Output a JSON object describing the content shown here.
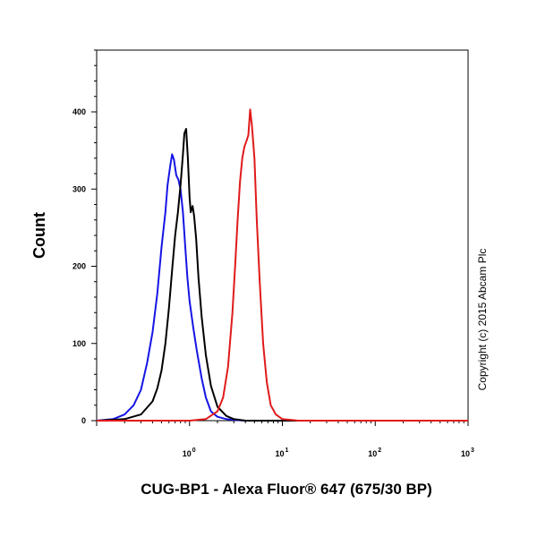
{
  "chart_data": {
    "type": "line",
    "subtype": "histogram",
    "title": "",
    "xlabel": "CUG-BP1 - Alexa Fluor® 647 (675/30 BP)",
    "ylabel": "Count",
    "x_scale": "log",
    "xlim": [
      0.1,
      1000
    ],
    "ylim": [
      0,
      480
    ],
    "x_ticks": [
      {
        "base": "10",
        "exp": "0",
        "value": 1
      },
      {
        "base": "10",
        "exp": "1",
        "value": 10
      },
      {
        "base": "10",
        "exp": "2",
        "value": 100
      },
      {
        "base": "10",
        "exp": "3",
        "value": 1000
      }
    ],
    "y_ticks": [
      {
        "label": "0",
        "value": 0
      },
      {
        "label": "100",
        "value": 100
      },
      {
        "label": "200",
        "value": 200
      },
      {
        "label": "300",
        "value": 300
      },
      {
        "label": "400",
        "value": 400
      }
    ],
    "annotation": "Copyright (c) 2015 Abcam Plc",
    "legend": "none",
    "series": [
      {
        "color": "#1515e6",
        "x": [
          0.1,
          0.15,
          0.2,
          0.25,
          0.3,
          0.35,
          0.4,
          0.45,
          0.5,
          0.55,
          0.58,
          0.62,
          0.65,
          0.68,
          0.72,
          0.76,
          0.8,
          0.85,
          0.9,
          0.95,
          1.0,
          1.1,
          1.2,
          1.35,
          1.5,
          1.7,
          2.0,
          2.5,
          3.0,
          4.0,
          10,
          100,
          1000
        ],
        "y": [
          0,
          2,
          8,
          20,
          40,
          75,
          115,
          165,
          225,
          270,
          305,
          330,
          345,
          338,
          318,
          312,
          300,
          270,
          225,
          185,
          155,
          120,
          90,
          55,
          30,
          12,
          5,
          2,
          1,
          0,
          0,
          0,
          0
        ]
      },
      {
        "color": "#000000",
        "x": [
          0.1,
          0.2,
          0.3,
          0.4,
          0.45,
          0.5,
          0.55,
          0.6,
          0.65,
          0.7,
          0.75,
          0.8,
          0.85,
          0.88,
          0.92,
          0.96,
          1.0,
          1.03,
          1.08,
          1.12,
          1.18,
          1.25,
          1.35,
          1.5,
          1.7,
          2.0,
          2.5,
          3.0,
          4.0,
          10,
          100,
          1000
        ],
        "y": [
          0,
          2,
          8,
          25,
          42,
          65,
          100,
          145,
          195,
          240,
          270,
          305,
          345,
          372,
          378,
          340,
          290,
          270,
          278,
          265,
          235,
          185,
          135,
          85,
          45,
          18,
          6,
          2,
          0,
          0,
          0,
          0
        ]
      },
      {
        "color": "#e01a1a",
        "x": [
          0.1,
          1.0,
          1.5,
          2.0,
          2.3,
          2.6,
          2.9,
          3.1,
          3.3,
          3.5,
          3.7,
          3.9,
          4.1,
          4.3,
          4.5,
          4.7,
          5.0,
          5.3,
          5.7,
          6.2,
          6.8,
          7.5,
          8.5,
          10,
          15,
          100,
          1000
        ],
        "y": [
          0,
          0,
          2,
          12,
          30,
          70,
          140,
          200,
          260,
          310,
          340,
          355,
          362,
          370,
          403,
          382,
          340,
          260,
          180,
          100,
          50,
          20,
          8,
          2,
          0,
          0,
          0
        ]
      }
    ]
  }
}
